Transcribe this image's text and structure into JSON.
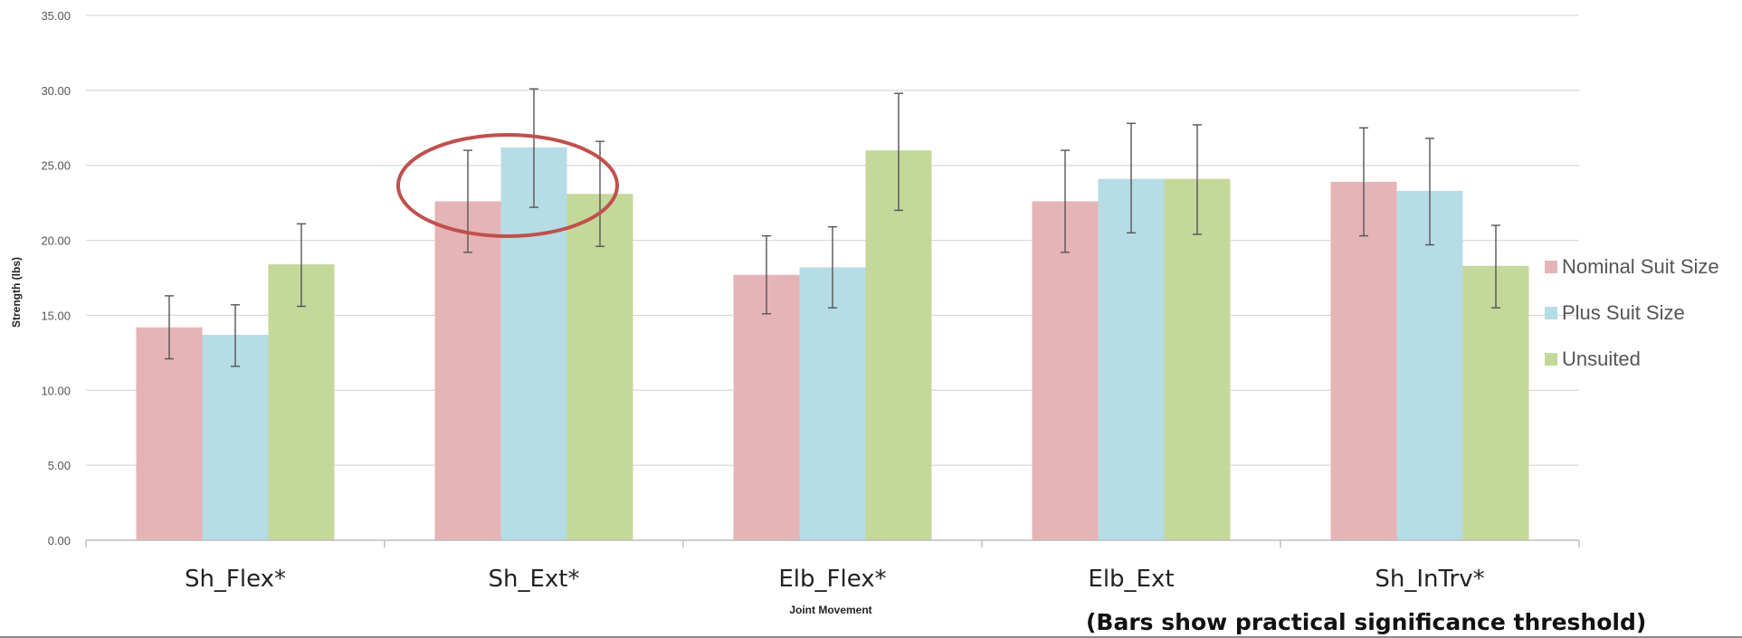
{
  "chart_data": {
    "type": "bar",
    "title": "",
    "xlabel": "Joint Movement",
    "ylabel": "Strength (lbs)",
    "ylim": [
      0,
      35
    ],
    "yticks": [
      "0.00",
      "5.00",
      "10.00",
      "15.00",
      "20.00",
      "25.00",
      "30.00",
      "35.00"
    ],
    "grid": true,
    "legend_position": "right",
    "categories": [
      "Sh_Flex*",
      "Sh_Ext*",
      "Elb_Flex*",
      "Elb_Ext",
      "Sh_InTrv*"
    ],
    "series": [
      {
        "name": "Nominal Suit Size",
        "color": "#e6b4b6",
        "values": [
          14.2,
          22.6,
          17.7,
          22.6,
          23.9
        ],
        "err_low": [
          12.1,
          19.2,
          15.1,
          19.2,
          20.3
        ],
        "err_high": [
          16.3,
          26.0,
          20.3,
          26.0,
          27.5
        ]
      },
      {
        "name": "Plus Suit Size",
        "color": "#b6dce6",
        "values": [
          13.7,
          26.2,
          18.2,
          24.1,
          23.3
        ],
        "err_low": [
          11.6,
          22.2,
          15.5,
          20.5,
          19.7
        ],
        "err_high": [
          15.7,
          30.1,
          20.9,
          27.8,
          26.8
        ]
      },
      {
        "name": "Unsuited",
        "color": "#c4d89a",
        "values": [
          18.4,
          23.1,
          26.0,
          24.1,
          18.3
        ],
        "err_low": [
          15.6,
          19.6,
          22.0,
          20.4,
          15.5
        ],
        "err_high": [
          21.1,
          26.6,
          29.8,
          27.7,
          21.0
        ]
      }
    ],
    "annotation": {
      "shape": "ellipse",
      "color": "#c0504d",
      "highlights_category": "Sh_Ext*"
    },
    "note": "(Bars show practical significance threshold)"
  }
}
